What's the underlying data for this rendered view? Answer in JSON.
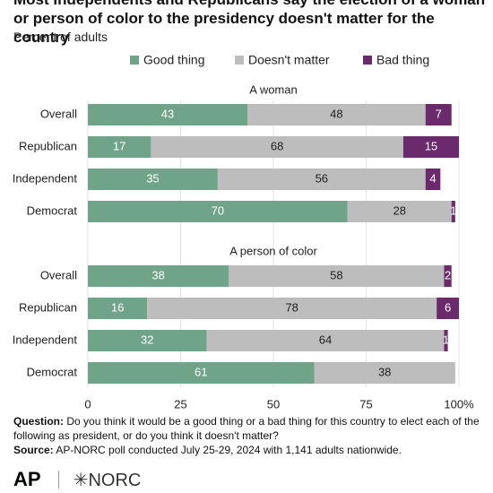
{
  "title": "Most Independents and Republicans say the election of a woman or person of color to the presidency doesn't matter for the country",
  "subtitle": "Percent of adults",
  "chart_data": [
    {
      "type": "bar",
      "orientation": "horizontal",
      "stacked": true,
      "title": "A woman",
      "categories": [
        "Overall",
        "Republican",
        "Independent",
        "Democrat"
      ],
      "series": [
        {
          "name": "Good thing",
          "color": "#6fa488",
          "values": [
            43,
            17,
            35,
            70
          ]
        },
        {
          "name": "Doesn't matter",
          "color": "#bdbdbd",
          "values": [
            48,
            68,
            56,
            28
          ]
        },
        {
          "name": "Bad thing",
          "color": "#6b2a6b",
          "values": [
            7,
            15,
            4,
            1
          ]
        }
      ],
      "xlim": [
        0,
        100
      ]
    },
    {
      "type": "bar",
      "orientation": "horizontal",
      "stacked": true,
      "title": "A person of color",
      "categories": [
        "Overall",
        "Republican",
        "Independent",
        "Democrat"
      ],
      "series": [
        {
          "name": "Good thing",
          "color": "#6fa488",
          "values": [
            38,
            16,
            32,
            61
          ]
        },
        {
          "name": "Doesn't matter",
          "color": "#bdbdbd",
          "values": [
            58,
            78,
            64,
            38
          ]
        },
        {
          "name": "Bad thing",
          "color": "#6b2a6b",
          "values": [
            2,
            6,
            1,
            null
          ]
        }
      ],
      "xlim": [
        0,
        100
      ],
      "xticks": [
        0,
        25,
        50,
        75,
        {
          "value": 100,
          "label": "100%"
        }
      ],
      "grid": true
    }
  ],
  "notes": {
    "question_label": "Question:",
    "question": "Do you think it would be a good thing or a bad thing for this country to elect each of the following as president, or do you think it doesn't matter?",
    "source_label": "Source:",
    "source": "AP-NORC poll conducted July 25-29, 2024 with 1,141 adults nationwide."
  },
  "logos": [
    "AP",
    "NORC"
  ]
}
